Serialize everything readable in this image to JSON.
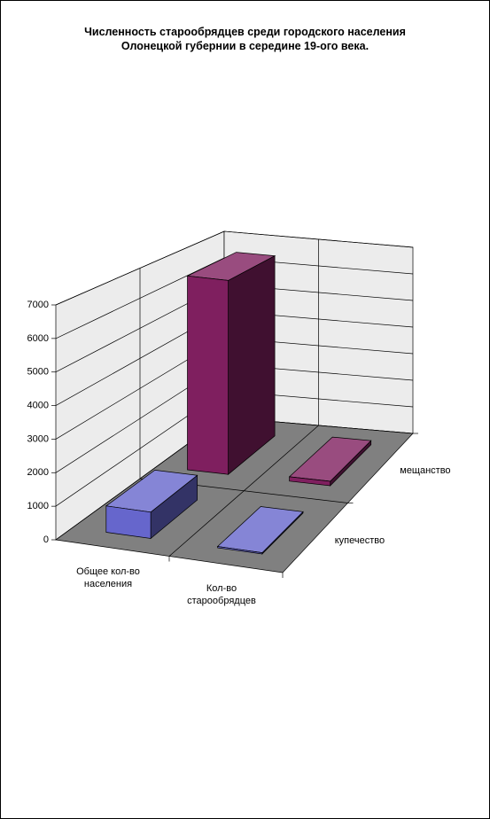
{
  "chart_data": {
    "type": "bar3d",
    "title": "Численность старообрядцев среди городского населения Олонецкой губернии в середине 19-ого века.",
    "categories": [
      "Общее кол-во населения",
      "Кол-во старообрядцев"
    ],
    "series": [
      {
        "name": "купечество",
        "color": "#6666cc",
        "values": [
          800,
          40
        ]
      },
      {
        "name": "мещанство",
        "color": "#7f1f5f",
        "values": [
          6600,
          150
        ]
      }
    ],
    "ylim": [
      0,
      7000
    ],
    "yticks": [
      0,
      1000,
      2000,
      3000,
      4000,
      5000,
      6000,
      7000
    ],
    "grid": true
  }
}
